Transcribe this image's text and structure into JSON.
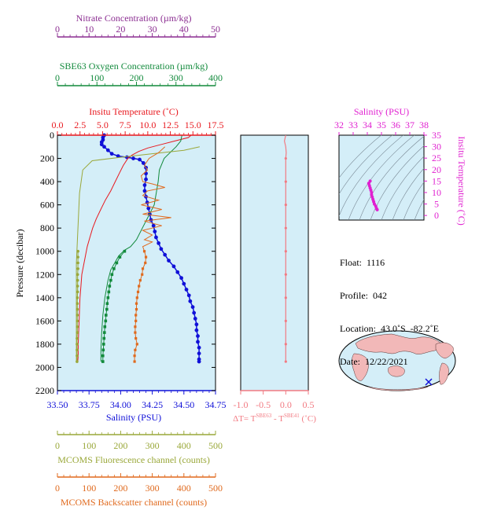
{
  "colors": {
    "nitrate": "#8b2d91",
    "oxygen": "#128a3c",
    "temperature": "#e8191f",
    "salinity": "#1010d8",
    "fluorescence": "#9aa83a",
    "backscatter": "#e06a1e",
    "delta": "#f27a82",
    "magenta": "#e020d0",
    "panel": "#d4eef8"
  },
  "top_axes": {
    "nitrate": {
      "title": "Nitrate Concentration (µm/kg)",
      "ticks": [
        "0",
        "10",
        "20",
        "30",
        "40",
        "50"
      ]
    },
    "oxygen": {
      "title": "SBE63 Oxygen Concentration (µm/kg)",
      "ticks": [
        "0",
        "100",
        "200",
        "300",
        "400"
      ]
    },
    "temperature": {
      "title": "Insitu Temperature (˚C)",
      "ticks": [
        "0.0",
        "2.5",
        "5.0",
        "7.5",
        "10.0",
        "12.5",
        "15.0",
        "17.5"
      ]
    }
  },
  "bottom_axes": {
    "salinity": {
      "title": "Salinity (PSU)",
      "ticks": [
        "33.50",
        "33.75",
        "34.00",
        "34.25",
        "34.50",
        "34.75"
      ]
    },
    "fluorescence": {
      "title": "MCOMS Fluorescence channel (counts)",
      "ticks": [
        "0",
        "100",
        "200",
        "300",
        "400",
        "500"
      ]
    },
    "backscatter": {
      "title": "MCOMS Backscatter channel (counts)",
      "ticks": [
        "0",
        "100",
        "200",
        "300",
        "400",
        "500"
      ]
    }
  },
  "pressure_axis": {
    "title": "Pressure (decibar)",
    "ticks": [
      "0",
      "200",
      "400",
      "600",
      "800",
      "1000",
      "1200",
      "1400",
      "1600",
      "1800",
      "2000",
      "2200"
    ]
  },
  "delta_axis": {
    "ticks": [
      "-1.0",
      "-0.5",
      "0.0",
      "0.5"
    ],
    "title_pre": "ΔT= T",
    "sup1": "SBE63",
    "mid": " - T",
    "sup2": "SBE41",
    "title_post": " (˚C)"
  },
  "ts_axis": {
    "salinity_title": "Salinity (PSU)",
    "salinity_ticks": [
      "32",
      "33",
      "34",
      "35",
      "36",
      "37",
      "38"
    ],
    "temp_title": "Insitu Temperature (˚C)",
    "temp_ticks": [
      "0",
      "5",
      "10",
      "15",
      "20",
      "25",
      "30",
      "35"
    ]
  },
  "float_info": {
    "float": "Float:  1116",
    "profile": "Profile:  042",
    "location": "Location:  43.0˚S  -82.2˚E",
    "date": "Date:  12/22/2021"
  },
  "chart_data": [
    {
      "type": "line",
      "name": "main-profile",
      "y_axis": "pressure (decibar)",
      "ylim": [
        0,
        2200
      ],
      "series": [
        {
          "name": "Salinity",
          "axis": "salinity",
          "xlim": [
            33.5,
            34.75
          ],
          "points": [
            [
              33.87,
              0
            ],
            [
              33.86,
              20
            ],
            [
              33.86,
              40
            ],
            [
              33.85,
              60
            ],
            [
              33.85,
              80
            ],
            [
              33.87,
              100
            ],
            [
              33.9,
              130
            ],
            [
              33.93,
              160
            ],
            [
              33.98,
              180
            ],
            [
              34.05,
              190
            ],
            [
              34.1,
              200
            ],
            [
              34.15,
              210
            ],
            [
              34.18,
              240
            ],
            [
              34.2,
              280
            ],
            [
              34.2,
              330
            ],
            [
              34.2,
              380
            ],
            [
              34.19,
              430
            ],
            [
              34.19,
              480
            ],
            [
              34.2,
              530
            ],
            [
              34.21,
              580
            ],
            [
              34.22,
              630
            ],
            [
              34.23,
              680
            ],
            [
              34.24,
              730
            ],
            [
              34.26,
              780
            ],
            [
              34.27,
              830
            ],
            [
              34.28,
              880
            ],
            [
              34.3,
              930
            ],
            [
              34.32,
              980
            ],
            [
              34.35,
              1030
            ],
            [
              34.38,
              1080
            ],
            [
              34.42,
              1130
            ],
            [
              34.45,
              1180
            ],
            [
              34.48,
              1230
            ],
            [
              34.5,
              1280
            ],
            [
              34.52,
              1330
            ],
            [
              34.54,
              1380
            ],
            [
              34.55,
              1430
            ],
            [
              34.57,
              1480
            ],
            [
              34.58,
              1530
            ],
            [
              34.59,
              1580
            ],
            [
              34.6,
              1630
            ],
            [
              34.6,
              1680
            ],
            [
              34.61,
              1730
            ],
            [
              34.61,
              1780
            ],
            [
              34.62,
              1830
            ],
            [
              34.62,
              1880
            ],
            [
              34.62,
              1930
            ],
            [
              34.62,
              1950
            ]
          ]
        },
        {
          "name": "Temperature",
          "axis": "temperature",
          "xlim": [
            0,
            17.5
          ],
          "points": [
            [
              14.8,
              0
            ],
            [
              14.5,
              20
            ],
            [
              13.0,
              50
            ],
            [
              11.5,
              80
            ],
            [
              10.0,
              110
            ],
            [
              9.0,
              140
            ],
            [
              8.3,
              170
            ],
            [
              7.8,
              200
            ],
            [
              7.3,
              260
            ],
            [
              6.9,
              320
            ],
            [
              6.4,
              400
            ],
            [
              5.9,
              480
            ],
            [
              5.3,
              560
            ],
            [
              4.8,
              640
            ],
            [
              4.3,
              720
            ],
            [
              3.9,
              800
            ],
            [
              3.6,
              880
            ],
            [
              3.3,
              960
            ],
            [
              3.1,
              1040
            ],
            [
              2.9,
              1120
            ],
            [
              2.7,
              1200
            ],
            [
              2.6,
              1300
            ],
            [
              2.5,
              1400
            ],
            [
              2.45,
              1500
            ],
            [
              2.4,
              1600
            ],
            [
              2.35,
              1700
            ],
            [
              2.3,
              1800
            ],
            [
              2.3,
              1900
            ],
            [
              2.25,
              1950
            ]
          ]
        },
        {
          "name": "Oxygen",
          "axis": "oxygen",
          "xlim": [
            0,
            400
          ],
          "points": [
            [
              315,
              0
            ],
            [
              312,
              50
            ],
            [
              300,
              100
            ],
            [
              285,
              150
            ],
            [
              270,
              200
            ],
            [
              258,
              300
            ],
            [
              255,
              400
            ],
            [
              250,
              500
            ],
            [
              245,
              600
            ],
            [
              230,
              700
            ],
            [
              215,
              800
            ],
            [
              200,
              900
            ],
            [
              185,
              960
            ],
            [
              170,
              990
            ],
            [
              155,
              1040
            ],
            [
              145,
              1100
            ],
            [
              135,
              1160
            ],
            [
              128,
              1250
            ],
            [
              120,
              1400
            ],
            [
              115,
              1550
            ],
            [
              112,
              1700
            ],
            [
              110,
              1850
            ],
            [
              110,
              1950
            ]
          ]
        },
        {
          "name": "Oxygen-bottle",
          "axis": "oxygen",
          "xlim": [
            0,
            400
          ],
          "points": [
            [
              170,
              1000
            ],
            [
              158,
              1050
            ],
            [
              150,
              1100
            ],
            [
              143,
              1150
            ],
            [
              138,
              1200
            ],
            [
              135,
              1250
            ],
            [
              132,
              1300
            ],
            [
              130,
              1350
            ],
            [
              128,
              1400
            ],
            [
              126,
              1450
            ],
            [
              125,
              1500
            ],
            [
              123,
              1550
            ],
            [
              122,
              1600
            ],
            [
              120,
              1650
            ],
            [
              119,
              1700
            ],
            [
              118,
              1750
            ],
            [
              117,
              1800
            ],
            [
              116,
              1850
            ],
            [
              115,
              1900
            ],
            [
              115,
              1950
            ]
          ]
        },
        {
          "name": "Nitrate",
          "axis": "nitrate",
          "xlim": [
            0,
            50
          ],
          "points": [
            [
              45,
              100
            ],
            [
              40,
              130
            ],
            [
              30,
              160
            ],
            [
              20,
              190
            ],
            [
              11,
              220
            ],
            [
              8,
              300
            ],
            [
              7,
              500
            ],
            [
              6.5,
              800
            ],
            [
              6,
              1100
            ],
            [
              6,
              1500
            ],
            [
              6,
              1800
            ],
            [
              6,
              1950
            ]
          ]
        },
        {
          "name": "Fluorescence",
          "axis": "fluorescence",
          "xlim": [
            0,
            500
          ],
          "points": [
            [
              65,
              1000
            ],
            [
              65,
              1050
            ],
            [
              65,
              1100
            ],
            [
              65,
              1150
            ],
            [
              64,
              1200
            ],
            [
              64,
              1250
            ],
            [
              64,
              1300
            ],
            [
              64,
              1350
            ],
            [
              63,
              1400
            ],
            [
              63,
              1450
            ],
            [
              63,
              1500
            ],
            [
              63,
              1550
            ],
            [
              63,
              1600
            ],
            [
              63,
              1650
            ],
            [
              63,
              1700
            ],
            [
              62,
              1750
            ],
            [
              62,
              1800
            ],
            [
              62,
              1850
            ],
            [
              62,
              1900
            ],
            [
              62,
              1950
            ]
          ]
        },
        {
          "name": "Backscatter",
          "axis": "backscatter",
          "xlim": [
            0,
            500
          ],
          "points": [
            [
              340,
              100
            ],
            [
              320,
              150
            ],
            [
              290,
              200
            ],
            [
              275,
              260
            ],
            [
              285,
              300
            ],
            [
              265,
              350
            ],
            [
              270,
              400
            ],
            [
              300,
              420
            ],
            [
              340,
              450
            ],
            [
              285,
              480
            ],
            [
              270,
              520
            ],
            [
              320,
              560
            ],
            [
              265,
              600
            ],
            [
              330,
              640
            ],
            [
              270,
              680
            ],
            [
              360,
              710
            ],
            [
              275,
              740
            ],
            [
              330,
              780
            ],
            [
              270,
              820
            ],
            [
              300,
              860
            ],
            [
              275,
              900
            ],
            [
              300,
              920
            ],
            [
              270,
              960
            ],
            [
              275,
              1000
            ],
            [
              280,
              1050
            ],
            [
              278,
              1100
            ],
            [
              270,
              1150
            ],
            [
              268,
              1200
            ],
            [
              262,
              1250
            ],
            [
              258,
              1300
            ],
            [
              255,
              1350
            ],
            [
              252,
              1400
            ],
            [
              250,
              1450
            ],
            [
              250,
              1500
            ],
            [
              248,
              1550
            ],
            [
              248,
              1600
            ],
            [
              246,
              1650
            ],
            [
              246,
              1700
            ],
            [
              248,
              1750
            ],
            [
              252,
              1800
            ],
            [
              246,
              1850
            ],
            [
              244,
              1900
            ],
            [
              244,
              1950
            ]
          ]
        }
      ]
    },
    {
      "type": "line",
      "name": "delta-t",
      "xlim": [
        -1.0,
        0.5
      ],
      "ylim": [
        0,
        2200
      ],
      "series": [
        {
          "name": "ΔT",
          "points": [
            [
              0.0,
              0
            ],
            [
              -0.03,
              50
            ],
            [
              0.0,
              100
            ],
            [
              0.01,
              150
            ],
            [
              0.0,
              200
            ],
            [
              0.0,
              400
            ],
            [
              0.0,
              600
            ],
            [
              0.0,
              800
            ],
            [
              0.0,
              1000
            ],
            [
              0.0,
              1200
            ],
            [
              0.0,
              1400
            ],
            [
              0.0,
              1600
            ],
            [
              0.0,
              1800
            ],
            [
              0.0,
              1950
            ]
          ]
        }
      ]
    },
    {
      "type": "scatter",
      "name": "t-s-diagram",
      "xlim": [
        32,
        38
      ],
      "ylim": [
        -2,
        35
      ],
      "series": [
        {
          "name": "T-S",
          "points": [
            [
              34.2,
              15.0
            ],
            [
              34.1,
              14.0
            ],
            [
              34.15,
              13.0
            ],
            [
              34.2,
              12.0
            ],
            [
              34.25,
              11.0
            ],
            [
              34.3,
              10.0
            ],
            [
              34.3,
              9.0
            ],
            [
              34.35,
              8.0
            ],
            [
              34.4,
              7.0
            ],
            [
              34.45,
              6.0
            ],
            [
              34.5,
              5.0
            ],
            [
              34.6,
              4.0
            ],
            [
              34.65,
              3.0
            ],
            [
              34.7,
              2.5
            ]
          ]
        }
      ]
    }
  ]
}
